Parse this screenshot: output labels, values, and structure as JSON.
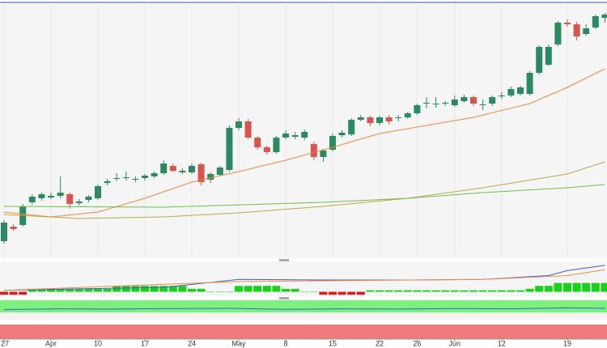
{
  "chart_data": {
    "type": "candlestick",
    "up_color": "#2b8a62",
    "down_color": "#d9534f",
    "ylim": [
      0,
      313
    ],
    "open": [
      20,
      38,
      40,
      68,
      73,
      74,
      76,
      78,
      67,
      71,
      73,
      92,
      97,
      98,
      96,
      98,
      100,
      104,
      113,
      105,
      105,
      115,
      96,
      102,
      108,
      160,
      168,
      148,
      136,
      130,
      148,
      149,
      148,
      140,
      124,
      133,
      151,
      152,
      170,
      173,
      166,
      173,
      172,
      173,
      178,
      190,
      189,
      190,
      188,
      193,
      198,
      188,
      190,
      199,
      200,
      202,
      202,
      228,
      238,
      263,
      290,
      288,
      276,
      284,
      296
    ],
    "high": [
      46,
      41,
      66,
      78,
      80,
      80,
      100,
      80,
      72,
      77,
      90,
      97,
      104,
      106,
      100,
      103,
      106,
      120,
      116,
      110,
      116,
      117,
      105,
      113,
      163,
      172,
      171,
      150,
      138,
      150,
      157,
      155,
      158,
      143,
      134,
      153,
      157,
      172,
      176,
      175,
      175,
      176,
      176,
      180,
      190,
      198,
      198,
      193,
      200,
      201,
      200,
      195,
      200,
      204,
      211,
      212,
      230,
      262,
      263,
      292,
      294,
      291,
      288,
      300,
      302
    ],
    "low": [
      17,
      33,
      38,
      65,
      70,
      72,
      73,
      60,
      64,
      68,
      71,
      89,
      94,
      95,
      93,
      95,
      98,
      102,
      105,
      103,
      103,
      89,
      92,
      100,
      106,
      157,
      146,
      133,
      127,
      128,
      146,
      146,
      145,
      120,
      118,
      131,
      148,
      150,
      168,
      162,
      163,
      164,
      168,
      171,
      176,
      184,
      185,
      187,
      186,
      191,
      187,
      182,
      187,
      196,
      198,
      200,
      200,
      226,
      236,
      261,
      285,
      268,
      274,
      282,
      290
    ],
    "close": [
      43,
      35,
      63,
      75,
      78,
      76,
      80,
      66,
      69,
      75,
      88,
      94,
      98,
      99,
      97,
      101,
      104,
      116,
      107,
      107,
      113,
      93,
      103,
      111,
      160,
      168,
      148,
      136,
      130,
      148,
      153,
      151,
      155,
      124,
      132,
      150,
      154,
      170,
      173,
      166,
      173,
      168,
      173,
      178,
      188,
      191,
      190,
      191,
      195,
      198,
      190,
      189,
      198,
      200,
      208,
      210,
      228,
      260,
      260,
      290,
      288,
      273,
      283,
      298,
      300
    ],
    "moving_averages": [
      {
        "color": "#f0883e",
        "x": [
          0,
          5,
          10,
          15,
          20,
          25,
          30,
          35,
          40,
          45,
          50,
          56,
          60,
          64
        ],
        "values": [
          56,
          50,
          56,
          73,
          93,
          106,
          120,
          136,
          153,
          163,
          173,
          190,
          210,
          233
        ]
      },
      {
        "color": "#b8a848",
        "x": [
          0,
          8,
          17,
          25,
          34,
          43,
          51,
          60,
          64
        ],
        "values": [
          53,
          48,
          50,
          55,
          63,
          73,
          86,
          103,
          118
        ]
      },
      {
        "color": "#6cbf4a",
        "x": [
          0,
          17,
          34,
          43,
          51,
          60,
          64
        ],
        "values": [
          63,
          62,
          68,
          73,
          80,
          86,
          90
        ]
      }
    ],
    "macd": {
      "ylim": [
        -1.5,
        9.5
      ],
      "up_color": "#19d119",
      "down_color": "#e01b1b",
      "histogram": [
        -1,
        -1,
        -1,
        1,
        1,
        1,
        1,
        1,
        1,
        1,
        1,
        1,
        2,
        2,
        2,
        2,
        2,
        2,
        2,
        2,
        1,
        1,
        0,
        0,
        0,
        2,
        2,
        2,
        2,
        2,
        1,
        1,
        0,
        0,
        -1,
        -1,
        -1,
        -1,
        -1,
        0.5,
        0.5,
        0.5,
        0.5,
        0.5,
        0.5,
        0.5,
        0.5,
        0.5,
        0.5,
        0.5,
        0.5,
        0.5,
        0.5,
        0.5,
        0.5,
        0.5,
        1,
        2,
        2,
        3,
        3,
        3,
        3,
        3,
        3
      ],
      "lines": [
        {
          "color": "#3b5bdb",
          "x": [
            0,
            8,
            17,
            25,
            34,
            43,
            51,
            58,
            60,
            64
          ],
          "values": [
            0.5,
            1,
            1.5,
            4.2,
            4,
            4,
            4.2,
            5.5,
            7.2,
            9
          ]
        },
        {
          "color": "#f08c3e",
          "x": [
            0,
            25,
            51,
            60,
            64
          ],
          "values": [
            0.5,
            3.5,
            4.2,
            5.5,
            7.5
          ]
        }
      ]
    },
    "rsi": {
      "ylim": [
        0,
        100
      ],
      "band": [
        33,
        83
      ],
      "band_color": "#7cf07c",
      "line_color": "#3b5bdb",
      "x": [
        0,
        6,
        12,
        18,
        24,
        30,
        36,
        42,
        48,
        54,
        60,
        64
      ],
      "values": [
        45,
        48,
        47,
        49,
        50,
        46,
        48,
        47,
        49,
        48,
        52,
        50
      ]
    },
    "xticks": [
      {
        "value": 0,
        "label": "27"
      },
      {
        "value": 5,
        "label": "Apr"
      },
      {
        "value": 10,
        "label": "10"
      },
      {
        "value": 15,
        "label": "17"
      },
      {
        "value": 20,
        "label": "24"
      },
      {
        "value": 25,
        "label": "May"
      },
      {
        "value": 30,
        "label": "8"
      },
      {
        "value": 35,
        "label": "15"
      },
      {
        "value": 40,
        "label": "22"
      },
      {
        "value": 44,
        "label": "26"
      },
      {
        "value": 48,
        "label": "Jun"
      },
      {
        "value": 53,
        "label": "12"
      },
      {
        "value": 60,
        "label": "19"
      }
    ]
  }
}
